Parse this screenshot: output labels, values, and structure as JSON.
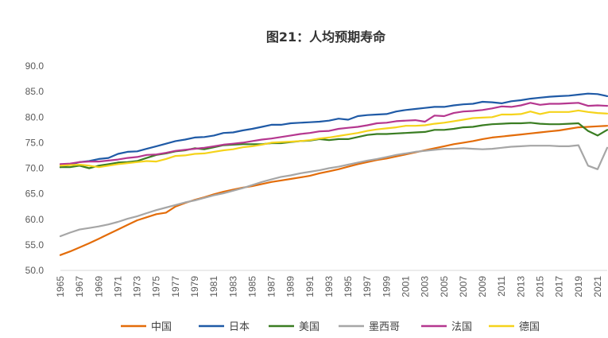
{
  "chart_data": {
    "type": "line",
    "title": "图21：人均预期寿命",
    "xlabel": "",
    "ylabel": "",
    "ylim": [
      50,
      90
    ],
    "y_ticks": [
      "50.0",
      "55.0",
      "60.0",
      "65.0",
      "70.0",
      "75.0",
      "80.0",
      "85.0",
      "90.0"
    ],
    "x_ticks": [
      "1965",
      "1967",
      "1969",
      "1971",
      "1973",
      "1975",
      "1977",
      "1979",
      "1981",
      "1983",
      "1985",
      "1987",
      "1989",
      "1991",
      "1993",
      "1995",
      "1997",
      "1999",
      "2001",
      "2003",
      "2005",
      "2007",
      "2009",
      "2011",
      "2013",
      "2015",
      "2017",
      "2019",
      "2021"
    ],
    "x": [
      1965,
      1966,
      1967,
      1968,
      1969,
      1970,
      1971,
      1972,
      1973,
      1974,
      1975,
      1976,
      1977,
      1978,
      1979,
      1980,
      1981,
      1982,
      1983,
      1984,
      1985,
      1986,
      1987,
      1988,
      1989,
      1990,
      1991,
      1992,
      1993,
      1994,
      1995,
      1996,
      1997,
      1998,
      1999,
      2000,
      2001,
      2002,
      2003,
      2004,
      2005,
      2006,
      2007,
      2008,
      2009,
      2010,
      2011,
      2012,
      2013,
      2014,
      2015,
      2016,
      2017,
      2018,
      2019,
      2020,
      2021,
      2022
    ],
    "grid": false,
    "legend_position": "bottom",
    "series": [
      {
        "name": "中国",
        "color": "#e36c09",
        "values": [
          53.0,
          53.7,
          54.5,
          55.3,
          56.2,
          57.1,
          58.0,
          58.9,
          59.8,
          60.4,
          61.0,
          61.3,
          62.5,
          63.2,
          63.8,
          64.3,
          64.9,
          65.4,
          65.8,
          66.2,
          66.5,
          66.9,
          67.3,
          67.6,
          67.9,
          68.2,
          68.5,
          69.0,
          69.4,
          69.8,
          70.3,
          70.8,
          71.2,
          71.6,
          71.9,
          72.3,
          72.7,
          73.1,
          73.5,
          73.9,
          74.3,
          74.7,
          75.0,
          75.3,
          75.7,
          76.0,
          76.2,
          76.4,
          76.6,
          76.8,
          77.0,
          77.2,
          77.4,
          77.7,
          78.0,
          78.1,
          78.2,
          78.3
        ]
      },
      {
        "name": "日本",
        "color": "#1f5aa6",
        "values": [
          70.2,
          70.7,
          71.2,
          71.4,
          71.8,
          72.0,
          72.8,
          73.2,
          73.3,
          73.8,
          74.3,
          74.8,
          75.3,
          75.6,
          76.0,
          76.1,
          76.4,
          76.9,
          77.0,
          77.4,
          77.7,
          78.1,
          78.5,
          78.5,
          78.8,
          78.9,
          79.0,
          79.1,
          79.3,
          79.7,
          79.5,
          80.2,
          80.4,
          80.5,
          80.6,
          81.1,
          81.4,
          81.6,
          81.8,
          82.0,
          82.0,
          82.3,
          82.5,
          82.6,
          83.0,
          82.9,
          82.7,
          83.1,
          83.3,
          83.6,
          83.8,
          84.0,
          84.1,
          84.2,
          84.4,
          84.6,
          84.5,
          84.1
        ]
      },
      {
        "name": "美国",
        "color": "#3a7d22",
        "values": [
          70.2,
          70.2,
          70.5,
          70.0,
          70.5,
          70.8,
          71.1,
          71.2,
          71.4,
          72.0,
          72.6,
          72.9,
          73.3,
          73.5,
          73.9,
          73.7,
          74.1,
          74.5,
          74.6,
          74.7,
          74.7,
          74.7,
          74.9,
          74.9,
          75.1,
          75.3,
          75.4,
          75.7,
          75.5,
          75.7,
          75.7,
          76.1,
          76.5,
          76.7,
          76.7,
          76.8,
          76.9,
          77.0,
          77.1,
          77.5,
          77.5,
          77.7,
          78.0,
          78.1,
          78.4,
          78.6,
          78.7,
          78.8,
          78.8,
          78.9,
          78.7,
          78.6,
          78.6,
          78.7,
          78.8,
          77.3,
          76.4,
          77.5
        ]
      },
      {
        "name": "墨西哥",
        "color": "#a6a6a6",
        "values": [
          56.7,
          57.4,
          58.0,
          58.3,
          58.6,
          59.0,
          59.5,
          60.1,
          60.6,
          61.2,
          61.8,
          62.3,
          62.8,
          63.3,
          63.7,
          64.2,
          64.7,
          65.1,
          65.6,
          66.1,
          66.7,
          67.3,
          67.8,
          68.3,
          68.6,
          69.0,
          69.3,
          69.6,
          70.0,
          70.3,
          70.7,
          71.1,
          71.5,
          71.8,
          72.2,
          72.6,
          72.9,
          73.2,
          73.4,
          73.6,
          73.8,
          73.8,
          73.9,
          73.8,
          73.7,
          73.8,
          74.0,
          74.2,
          74.3,
          74.4,
          74.4,
          74.4,
          74.3,
          74.3,
          74.5,
          70.5,
          69.8,
          74.0
        ]
      },
      {
        "name": "法国",
        "color": "#b5378f",
        "values": [
          70.8,
          70.9,
          71.2,
          71.3,
          71.3,
          71.5,
          71.7,
          72.0,
          72.2,
          72.6,
          72.7,
          73.0,
          73.4,
          73.6,
          73.8,
          74.0,
          74.3,
          74.6,
          74.8,
          75.0,
          75.3,
          75.6,
          75.8,
          76.1,
          76.4,
          76.7,
          76.9,
          77.2,
          77.3,
          77.7,
          77.9,
          78.1,
          78.4,
          78.8,
          78.9,
          79.2,
          79.3,
          79.4,
          79.1,
          80.3,
          80.2,
          80.8,
          81.1,
          81.2,
          81.4,
          81.7,
          82.1,
          82.0,
          82.3,
          82.8,
          82.4,
          82.6,
          82.6,
          82.7,
          82.8,
          82.2,
          82.3,
          82.2
        ]
      },
      {
        "name": "德国",
        "color": "#f5d31b",
        "values": [
          70.5,
          70.6,
          70.7,
          70.5,
          70.2,
          70.5,
          70.8,
          71.0,
          71.2,
          71.4,
          71.3,
          71.8,
          72.4,
          72.5,
          72.8,
          72.9,
          73.2,
          73.5,
          73.7,
          74.1,
          74.3,
          74.6,
          75.0,
          75.1,
          75.2,
          75.3,
          75.5,
          75.8,
          76.0,
          76.3,
          76.6,
          76.9,
          77.3,
          77.6,
          77.8,
          78.0,
          78.3,
          78.3,
          78.4,
          78.7,
          78.9,
          79.2,
          79.5,
          79.8,
          79.9,
          80.0,
          80.5,
          80.5,
          80.6,
          81.1,
          80.6,
          81.0,
          81.0,
          81.0,
          81.3,
          81.0,
          80.8,
          80.7
        ]
      }
    ]
  }
}
